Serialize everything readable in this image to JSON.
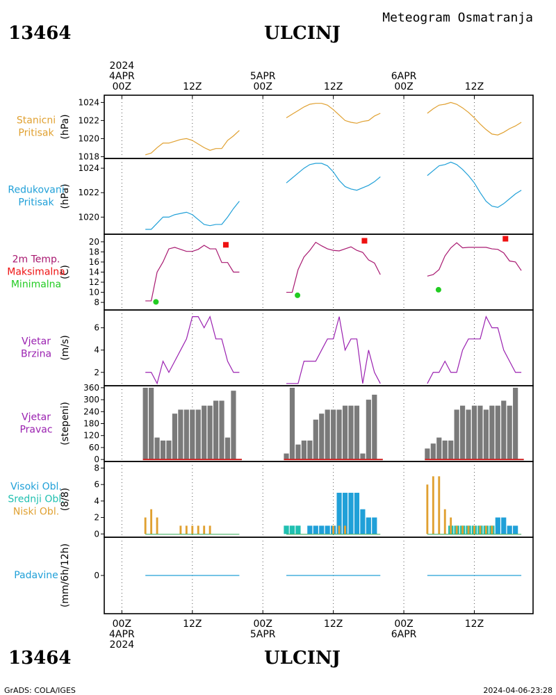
{
  "header": {
    "station_id": "13464",
    "station_name": "ULCINJ",
    "title": "Meteogram Osmatranja",
    "footer_left": "GrADS: COLA/IGES",
    "footer_right": "2024-04-06-23:28"
  },
  "time_axis": {
    "top_labels": [
      {
        "lines": [
          "2024",
          "4APR",
          "00Z"
        ],
        "hour": 0
      },
      {
        "lines": [
          "12Z"
        ],
        "hour": 12
      },
      {
        "lines": [
          "5APR",
          "00Z"
        ],
        "hour": 24
      },
      {
        "lines": [
          "12Z"
        ],
        "hour": 36
      },
      {
        "lines": [
          "6APR",
          "00Z"
        ],
        "hour": 48
      },
      {
        "lines": [
          "12Z"
        ],
        "hour": 60
      }
    ],
    "bottom_labels": [
      {
        "lines": [
          "00Z",
          "4APR",
          "2024"
        ],
        "hour": 0
      },
      {
        "lines": [
          "12Z"
        ],
        "hour": 12
      },
      {
        "lines": [
          "00Z",
          "5APR"
        ],
        "hour": 24
      },
      {
        "lines": [
          "12Z"
        ],
        "hour": 36
      },
      {
        "lines": [
          "00Z",
          "6APR"
        ],
        "hour": 48
      },
      {
        "lines": [
          "12Z"
        ],
        "hour": 60
      }
    ],
    "range_hours": [
      -3,
      70
    ]
  },
  "colors": {
    "orange": "#e0a030",
    "cyan": "#20a0d8",
    "red": "#ee1111",
    "green": "#22cc22",
    "purple": "#9a20b0",
    "magenta": "#a81870",
    "grey": "#7a7a7a",
    "teal": "#20c0b0"
  },
  "chart_data": [
    {
      "type": "line",
      "panel": "station_pressure",
      "labels": [
        "Stanicni",
        "Pritisak"
      ],
      "label_colors": [
        "orange",
        "orange"
      ],
      "ylabel": "(hPa)",
      "ylim": [
        1017.8,
        1024.8
      ],
      "yticks": [
        1018,
        1020,
        1022,
        1024
      ],
      "series": [
        {
          "color": "orange",
          "segments": [
            {
              "x": [
                4,
                5,
                6,
                7,
                8,
                9,
                10,
                11,
                12,
                13,
                14,
                15,
                16,
                17,
                18,
                19,
                20
              ],
              "y": [
                1018.2,
                1018.4,
                1019.0,
                1019.5,
                1019.5,
                1019.7,
                1019.9,
                1020.0,
                1019.8,
                1019.4,
                1019.0,
                1018.7,
                1018.9,
                1018.9,
                1019.8,
                1020.3,
                1020.9
              ]
            },
            {
              "x": [
                28,
                29,
                30,
                31,
                32,
                33,
                34,
                35,
                36,
                37,
                38,
                39,
                40,
                41,
                42,
                43,
                44
              ],
              "y": [
                1022.3,
                1022.7,
                1023.1,
                1023.5,
                1023.8,
                1023.9,
                1023.9,
                1023.7,
                1023.2,
                1022.6,
                1022.0,
                1021.8,
                1021.7,
                1021.9,
                1022.0,
                1022.5,
                1022.8
              ]
            },
            {
              "x": [
                52,
                53,
                54,
                55,
                56,
                57,
                58,
                59,
                60,
                61,
                62,
                63,
                64,
                65,
                66,
                67,
                68
              ],
              "y": [
                1022.8,
                1023.3,
                1023.7,
                1023.8,
                1024.0,
                1023.8,
                1023.4,
                1022.9,
                1022.3,
                1021.6,
                1021.0,
                1020.5,
                1020.4,
                1020.7,
                1021.1,
                1021.4,
                1021.8
              ]
            }
          ]
        }
      ]
    },
    {
      "type": "line",
      "panel": "reduced_pressure",
      "labels": [
        "Redukovani",
        "Pritisak"
      ],
      "label_colors": [
        "cyan",
        "cyan"
      ],
      "ylabel": "(hPa)",
      "ylim": [
        1018.6,
        1024.8
      ],
      "yticks": [
        1020,
        1022,
        1024
      ],
      "series": [
        {
          "color": "cyan",
          "segments": [
            {
              "x": [
                4,
                5,
                6,
                7,
                8,
                9,
                10,
                11,
                12,
                13,
                14,
                15,
                16,
                17,
                18,
                19,
                20
              ],
              "y": [
                1019.0,
                1019.0,
                1019.5,
                1020.0,
                1020.0,
                1020.2,
                1020.3,
                1020.4,
                1020.2,
                1019.8,
                1019.4,
                1019.3,
                1019.4,
                1019.4,
                1020.0,
                1020.7,
                1021.3
              ]
            },
            {
              "x": [
                28,
                29,
                30,
                31,
                32,
                33,
                34,
                35,
                36,
                37,
                38,
                39,
                40,
                41,
                42,
                43,
                44
              ],
              "y": [
                1022.8,
                1023.2,
                1023.6,
                1024.0,
                1024.3,
                1024.4,
                1024.4,
                1024.2,
                1023.7,
                1023.0,
                1022.5,
                1022.3,
                1022.2,
                1022.4,
                1022.6,
                1022.9,
                1023.3
              ]
            },
            {
              "x": [
                52,
                53,
                54,
                55,
                56,
                57,
                58,
                59,
                60,
                61,
                62,
                63,
                64,
                65,
                66,
                67,
                68
              ],
              "y": [
                1023.4,
                1023.8,
                1024.2,
                1024.3,
                1024.5,
                1024.3,
                1023.9,
                1023.4,
                1022.8,
                1022.0,
                1021.3,
                1020.9,
                1020.8,
                1021.1,
                1021.5,
                1021.9,
                1022.2
              ]
            }
          ]
        }
      ]
    },
    {
      "type": "line",
      "panel": "temperature",
      "labels": [
        "2m Temp.",
        "Maksimalna",
        "Minimalna"
      ],
      "label_colors": [
        "magenta",
        "red",
        "green"
      ],
      "ylabel": "(C)",
      "ylim": [
        6.5,
        21.5
      ],
      "yticks": [
        8,
        10,
        12,
        14,
        16,
        18,
        20
      ],
      "series": [
        {
          "color": "magenta",
          "segments": [
            {
              "x": [
                4,
                5,
                6,
                7,
                8,
                9,
                10,
                11,
                12,
                13,
                14,
                15,
                16,
                17,
                18,
                19,
                20
              ],
              "y": [
                8.3,
                8.3,
                14.0,
                16.0,
                18.6,
                18.9,
                18.5,
                18.1,
                18.1,
                18.5,
                19.3,
                18.6,
                18.6,
                15.9,
                15.9,
                14.0,
                14.0
              ]
            },
            {
              "x": [
                28,
                29,
                30,
                31,
                32,
                33,
                34,
                35,
                36,
                37,
                38,
                39,
                40,
                41,
                42,
                43,
                44
              ],
              "y": [
                10.0,
                10.0,
                14.5,
                17.0,
                18.3,
                19.9,
                19.2,
                18.6,
                18.3,
                18.2,
                18.6,
                19.0,
                18.3,
                17.9,
                16.4,
                15.8,
                13.5
              ]
            },
            {
              "x": [
                52,
                53,
                54,
                55,
                56,
                57,
                58,
                59,
                60,
                61,
                62,
                63,
                64,
                65,
                66,
                67,
                68
              ],
              "y": [
                13.2,
                13.5,
                14.5,
                17.2,
                18.8,
                19.8,
                18.8,
                18.9,
                18.9,
                18.9,
                18.9,
                18.6,
                18.5,
                17.8,
                16.2,
                16.0,
                14.3
              ]
            }
          ]
        }
      ],
      "max_points": [
        {
          "x": 17.7,
          "y": 19.4
        },
        {
          "x": 41.3,
          "y": 20.2
        },
        {
          "x": 65.3,
          "y": 20.6
        }
      ],
      "min_points": [
        {
          "x": 5.8,
          "y": 8.1
        },
        {
          "x": 29.9,
          "y": 9.4
        },
        {
          "x": 53.9,
          "y": 10.5
        }
      ]
    },
    {
      "type": "line",
      "panel": "wind_speed",
      "labels": [
        "Vjetar",
        "Brzina"
      ],
      "label_colors": [
        "purple",
        "purple"
      ],
      "ylabel": "(m/s)",
      "ylim": [
        0.8,
        7.6
      ],
      "yticks": [
        2,
        4,
        6
      ],
      "series": [
        {
          "color": "purple",
          "segments": [
            {
              "x": [
                4,
                5,
                6,
                7,
                8,
                9,
                10,
                11,
                12,
                13,
                14,
                15,
                16,
                17,
                18,
                19,
                20
              ],
              "y": [
                2,
                2,
                1,
                3,
                2,
                3,
                4,
                5,
                7,
                7,
                6,
                7,
                5,
                5,
                3,
                2,
                2
              ]
            },
            {
              "x": [
                28,
                29,
                30,
                31,
                32,
                33,
                34,
                35,
                36,
                37,
                38,
                39,
                40,
                41,
                42,
                43,
                44
              ],
              "y": [
                1,
                1,
                1,
                3,
                3,
                3,
                4,
                5,
                5,
                7,
                4,
                5,
                5,
                1,
                4,
                2,
                1
              ]
            },
            {
              "x": [
                52,
                53,
                54,
                55,
                56,
                57,
                58,
                59,
                60,
                61,
                62,
                63,
                64,
                65,
                66,
                67,
                68
              ],
              "y": [
                1,
                2,
                2,
                3,
                2,
                2,
                4,
                5,
                5,
                5,
                7,
                6,
                6,
                4,
                3,
                2,
                2
              ]
            }
          ]
        }
      ]
    },
    {
      "type": "bar",
      "panel": "wind_direction",
      "labels": [
        "Vjetar",
        "Pravac"
      ],
      "label_colors": [
        "purple",
        "purple"
      ],
      "ylabel": "(stepeni)",
      "ylim": [
        -10,
        370
      ],
      "yticks": [
        0,
        60,
        120,
        180,
        240,
        300,
        360
      ],
      "color": "grey",
      "x": [
        4,
        5,
        6,
        7,
        8,
        9,
        10,
        11,
        12,
        13,
        14,
        15,
        16,
        17,
        18,
        19,
        28,
        29,
        30,
        31,
        32,
        33,
        34,
        35,
        36,
        37,
        38,
        39,
        40,
        41,
        42,
        43,
        52,
        53,
        54,
        55,
        56,
        57,
        58,
        59,
        60,
        61,
        62,
        63,
        64,
        65,
        66,
        67
      ],
      "values": [
        360,
        360,
        110,
        95,
        95,
        230,
        250,
        250,
        250,
        250,
        270,
        270,
        295,
        295,
        110,
        345,
        30,
        360,
        75,
        95,
        95,
        200,
        230,
        250,
        250,
        250,
        270,
        270,
        270,
        30,
        300,
        325,
        55,
        80,
        110,
        95,
        95,
        250,
        270,
        250,
        270,
        270,
        250,
        270,
        270,
        295,
        270,
        360
      ]
    },
    {
      "type": "bar",
      "panel": "clouds",
      "labels": [
        "Visoki Obl.",
        "Srednji Obl.",
        "Niski Obl."
      ],
      "label_colors": [
        "cyan",
        "teal",
        "orange"
      ],
      "ylabel": "(8/8)",
      "ylim": [
        -0.4,
        8.8
      ],
      "yticks": [
        0,
        2,
        4,
        6,
        8
      ],
      "series": [
        {
          "name": "Visoki Obl.",
          "color": "cyan",
          "x": [
            28,
            29,
            30,
            32,
            33,
            34,
            35,
            36,
            37,
            38,
            39,
            40,
            41,
            42,
            43,
            56,
            57,
            58,
            59,
            60,
            61,
            62,
            63,
            64,
            65,
            66,
            67
          ],
          "values": [
            1,
            1,
            1,
            1,
            1,
            1,
            1,
            1,
            5,
            5,
            5,
            5,
            3,
            2,
            2,
            1,
            1,
            1,
            1,
            1,
            1,
            1,
            1,
            2,
            2,
            1,
            1
          ]
        },
        {
          "name": "Srednji Obl.",
          "color": "teal",
          "x": [
            28,
            29,
            30,
            56,
            57,
            58,
            59,
            60,
            61,
            62,
            63
          ],
          "values": [
            1,
            1,
            1,
            1,
            1,
            1,
            1,
            1,
            1,
            1,
            1
          ]
        },
        {
          "name": "Niski Obl.",
          "color": "orange",
          "x": [
            4,
            5,
            6,
            10,
            11,
            12,
            13,
            14,
            15,
            36,
            37,
            38,
            52,
            53,
            54,
            55,
            56,
            57,
            58,
            59,
            60,
            61,
            62,
            63
          ],
          "values": [
            2,
            3,
            2,
            1,
            1,
            1,
            1,
            1,
            1,
            1,
            1,
            1,
            6,
            7,
            7,
            3,
            2,
            1,
            1,
            1,
            1,
            1,
            1,
            1
          ]
        }
      ]
    },
    {
      "type": "line",
      "panel": "precipitation",
      "labels": [
        "Padavine"
      ],
      "label_colors": [
        "cyan"
      ],
      "ylabel": "(mm/6h/12h)",
      "ylim": [
        -1,
        1
      ],
      "yticks": [
        0
      ],
      "series": [
        {
          "color": "cyan",
          "segments": [
            {
              "x": [
                4,
                20
              ],
              "y": [
                0,
                0
              ]
            },
            {
              "x": [
                28,
                44
              ],
              "y": [
                0,
                0
              ]
            },
            {
              "x": [
                52,
                68
              ],
              "y": [
                0,
                0
              ]
            }
          ]
        }
      ]
    }
  ]
}
